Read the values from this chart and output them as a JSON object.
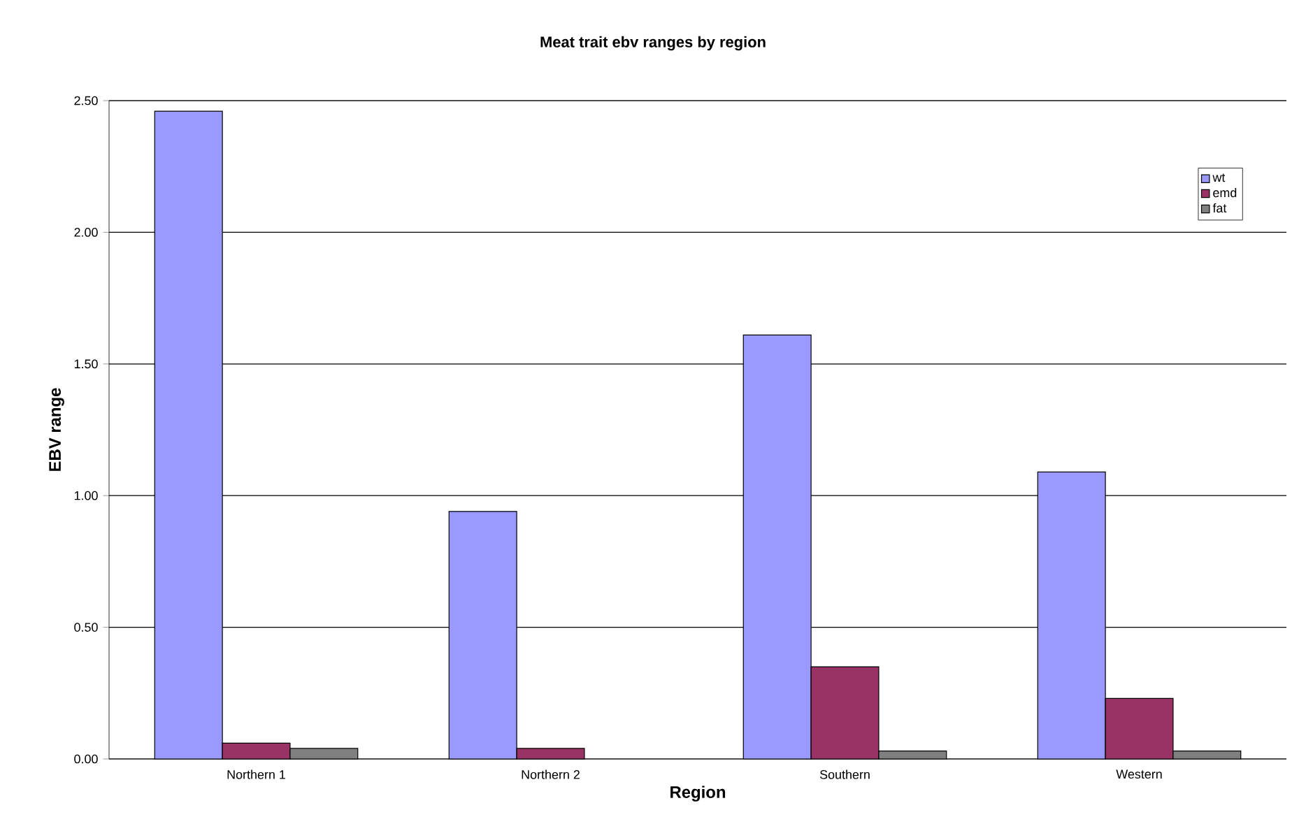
{
  "chart_data": {
    "type": "bar",
    "title": "Meat trait ebv ranges by region",
    "xlabel": "Region",
    "ylabel": "EBV range",
    "categories": [
      "Northern 1",
      "Northern 2",
      "Southern",
      "Western"
    ],
    "series": [
      {
        "name": "wt",
        "color": "#9999ff",
        "values": [
          2.46,
          0.94,
          1.61,
          1.09
        ]
      },
      {
        "name": "emd",
        "color": "#993366",
        "values": [
          0.06,
          0.04,
          0.35,
          0.23
        ]
      },
      {
        "name": "fat",
        "color": "#808080",
        "values": [
          0.04,
          null,
          0.03,
          0.03
        ]
      }
    ],
    "ylim": [
      0,
      2.5
    ],
    "yticks": [
      {
        "value": 0,
        "label": "0.00"
      },
      {
        "value": 0.5,
        "label": "0.50"
      },
      {
        "value": 1,
        "label": "1.00"
      },
      {
        "value": 1.5,
        "label": "1.50"
      },
      {
        "value": 2,
        "label": "2.00"
      },
      {
        "value": 2.5,
        "label": "2.50"
      }
    ],
    "grid": "y",
    "legend": "top right"
  }
}
